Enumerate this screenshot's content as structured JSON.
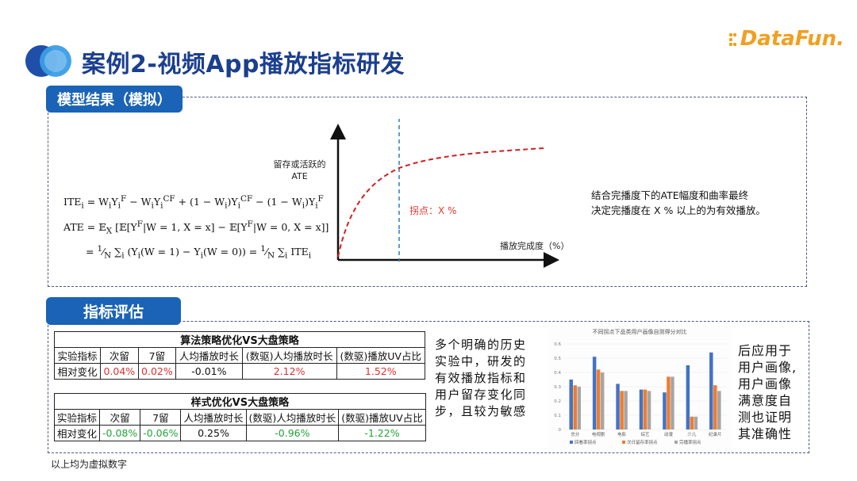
{
  "header": {
    "title": "案例2-视频App播放指标研发",
    "logo_text": "DataFun.",
    "logo_color": "#f0a020"
  },
  "section1": {
    "tag": "模型结果（模拟）",
    "formula": {
      "line1": "ITE_i = W_iY_i^F − W_iY_i^CF + (1 − W_i)Y_i^CF − (1 − W_i)Y_i^F",
      "line2": "ATE = 𝔼_X [𝔼[Y^F|W = 1, X = x] − 𝔼[Y^F|W = 0, X = x]]",
      "line3": "= 1/N ∑_i (Y_i(W = 1) − Y_i(W = 0)) = 1/N ∑_i ITE_i"
    },
    "graph": {
      "ylabel_line1": "留存或活跃的",
      "ylabel_line2": "ATE",
      "xlabel": "播放完成度（%）",
      "kink_label": "拐点：X %"
    },
    "note_line1": "结合完播度下的ATE幅度和曲率最终",
    "note_line2": "决定完播度在 X % 以上的为有效播放。"
  },
  "section2": {
    "tag": "指标评估",
    "tableA": {
      "caption": "算法策略优化VS大盘策略",
      "headers": [
        "实验指标",
        "次留",
        "7留",
        "人均播放时长",
        "(数驱)人均播放时长",
        "(数驱)播放UV占比"
      ],
      "row_label": "相对变化",
      "values": [
        "0.04%",
        "0.02%",
        "-0.01%",
        "2.12%",
        "1.52%"
      ]
    },
    "tableB": {
      "caption": "样式优化VS大盘策略",
      "headers": [
        "实验指标",
        "次留",
        "7留",
        "人均播放时长",
        "(数驱)人均播放时长",
        "(数驱)播放UV占比"
      ],
      "row_label": "相对变化",
      "values": [
        "-0.08%",
        "-0.06%",
        "0.25%",
        "-0.96%",
        "-1.22%"
      ]
    },
    "note_mid": "多个明确的历史实验中，研发的有效播放指标和用户留存变化同步，且较为敏感",
    "note_right": "后应用于用户画像,用户画像满意度自测也证明其准确性",
    "footnote": "以上均为虚拟数字"
  },
  "chart_data": {
    "type": "bar",
    "title": "不同拐点下品类用户画像自测得分对比",
    "categories": [
      "总分",
      "电视剧",
      "电影",
      "综艺",
      "动漫",
      "少儿",
      "纪录片"
    ],
    "series": [
      {
        "name": "回看率拐点",
        "color": "#4472c4",
        "values": [
          0.35,
          0.51,
          0.32,
          0.28,
          0.26,
          0.45,
          0.54
        ]
      },
      {
        "name": "次日留存率拐点",
        "color": "#ed7d31",
        "values": [
          0.31,
          0.42,
          0.27,
          0.28,
          0.37,
          0.09,
          0.31
        ]
      },
      {
        "name": "完播率拐点",
        "color": "#a5a5a5",
        "values": [
          0.3,
          0.4,
          0.27,
          0.27,
          0.37,
          0.09,
          0.27
        ]
      }
    ],
    "ylim": [
      0,
      0.6
    ],
    "yticks": [
      "0.6",
      "0.5",
      "0.4",
      "0.3",
      "0.2",
      "0.1",
      "0"
    ]
  }
}
